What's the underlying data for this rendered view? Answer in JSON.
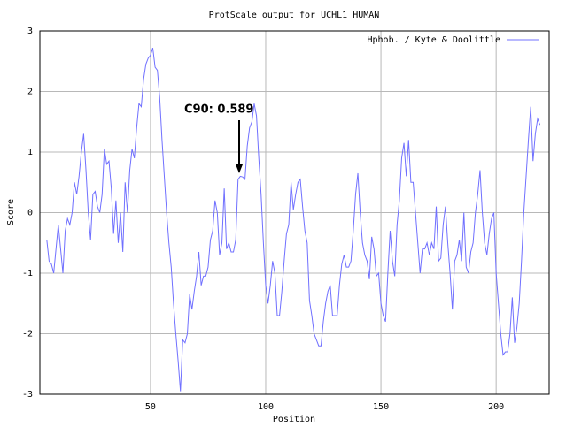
{
  "chart_data": {
    "type": "line",
    "title": "ProtScale output for UCHL1 HUMAN",
    "x_label": "Position",
    "y_label": "Score",
    "annotation": "C90: 0.589",
    "legend_position": "upper right",
    "grid": true,
    "xlim": [
      2,
      223
    ],
    "xticks": [
      50,
      100,
      150,
      200
    ],
    "ylim": [
      -3,
      3
    ],
    "yticks": [
      -3,
      -2,
      -1,
      0,
      1,
      2,
      3
    ],
    "x": [
      5,
      6,
      7,
      8,
      9,
      10,
      11,
      12,
      13,
      14,
      15,
      16,
      17,
      18,
      19,
      20,
      21,
      22,
      23,
      24,
      25,
      26,
      27,
      28,
      29,
      30,
      31,
      32,
      33,
      34,
      35,
      36,
      37,
      38,
      39,
      40,
      41,
      42,
      43,
      44,
      45,
      46,
      47,
      48,
      49,
      50,
      51,
      52,
      53,
      54,
      55,
      56,
      57,
      58,
      59,
      60,
      61,
      62,
      63,
      64,
      65,
      66,
      67,
      68,
      69,
      70,
      71,
      72,
      73,
      74,
      75,
      76,
      77,
      78,
      79,
      80,
      81,
      82,
      83,
      84,
      85,
      86,
      87,
      88,
      89,
      90,
      91,
      92,
      93,
      94,
      95,
      96,
      97,
      98,
      99,
      100,
      101,
      102,
      103,
      104,
      105,
      106,
      107,
      108,
      109,
      110,
      111,
      112,
      113,
      114,
      115,
      116,
      117,
      118,
      119,
      120,
      121,
      122,
      123,
      124,
      125,
      126,
      127,
      128,
      129,
      130,
      131,
      132,
      133,
      134,
      135,
      136,
      137,
      138,
      139,
      140,
      141,
      142,
      143,
      144,
      145,
      146,
      147,
      148,
      149,
      150,
      151,
      152,
      153,
      154,
      155,
      156,
      157,
      158,
      159,
      160,
      161,
      162,
      163,
      164,
      165,
      166,
      167,
      168,
      169,
      170,
      171,
      172,
      173,
      174,
      175,
      176,
      177,
      178,
      179,
      180,
      181,
      182,
      183,
      184,
      185,
      186,
      187,
      188,
      189,
      190,
      191,
      192,
      193,
      194,
      195,
      196,
      197,
      198,
      199,
      200,
      201,
      202,
      203,
      204,
      205,
      206,
      207,
      208,
      209,
      210,
      211,
      212,
      213,
      214,
      215,
      216,
      217,
      218,
      219
    ],
    "series": [
      {
        "name": "Hphob. / Kyte & Doolittle",
        "color": "#7070ff",
        "values": [
          -0.45,
          -0.8,
          -0.85,
          -1.0,
          -0.6,
          -0.2,
          -0.6,
          -1.0,
          -0.3,
          -0.1,
          -0.2,
          0.0,
          0.5,
          0.3,
          0.6,
          1.0,
          1.3,
          0.7,
          0.0,
          -0.45,
          0.3,
          0.35,
          0.1,
          0.0,
          0.3,
          1.05,
          0.8,
          0.85,
          0.4,
          -0.35,
          0.2,
          -0.5,
          0.0,
          -0.65,
          0.5,
          0.0,
          0.7,
          1.05,
          0.9,
          1.4,
          1.8,
          1.75,
          2.2,
          2.45,
          2.55,
          2.6,
          2.72,
          2.4,
          2.35,
          1.9,
          1.2,
          0.6,
          0.0,
          -0.5,
          -0.9,
          -1.5,
          -2.0,
          -2.45,
          -2.95,
          -2.1,
          -2.15,
          -2.0,
          -1.35,
          -1.6,
          -1.3,
          -1.05,
          -0.65,
          -1.2,
          -1.05,
          -1.05,
          -0.9,
          -0.45,
          -0.3,
          0.2,
          0.0,
          -0.7,
          -0.5,
          0.4,
          -0.6,
          -0.5,
          -0.65,
          -0.65,
          -0.45,
          0.55,
          0.6,
          0.589,
          0.55,
          1.1,
          1.4,
          1.5,
          1.8,
          1.6,
          0.9,
          0.3,
          -0.5,
          -1.2,
          -1.5,
          -1.2,
          -0.8,
          -1.0,
          -1.7,
          -1.7,
          -1.3,
          -0.8,
          -0.35,
          -0.2,
          0.5,
          0.05,
          0.3,
          0.5,
          0.55,
          0.1,
          -0.3,
          -0.5,
          -1.45,
          -1.7,
          -2.0,
          -2.1,
          -2.2,
          -2.2,
          -1.8,
          -1.5,
          -1.3,
          -1.2,
          -1.7,
          -1.7,
          -1.7,
          -1.2,
          -0.85,
          -0.7,
          -0.9,
          -0.9,
          -0.8,
          -0.3,
          0.3,
          0.65,
          0.0,
          -0.5,
          -0.7,
          -0.8,
          -1.1,
          -0.4,
          -0.6,
          -1.05,
          -1.0,
          -1.5,
          -1.7,
          -1.8,
          -1.0,
          -0.3,
          -0.8,
          -1.05,
          -0.2,
          0.2,
          0.9,
          1.15,
          0.6,
          1.2,
          0.5,
          0.5,
          0.0,
          -0.5,
          -1.0,
          -0.6,
          -0.6,
          -0.5,
          -0.7,
          -0.5,
          -0.6,
          0.1,
          -0.8,
          -0.75,
          -0.2,
          0.1,
          -0.5,
          -1.0,
          -1.6,
          -0.8,
          -0.7,
          -0.45,
          -0.8,
          0.0,
          -0.9,
          -1.0,
          -0.65,
          -0.5,
          0.0,
          0.3,
          0.7,
          0.0,
          -0.5,
          -0.7,
          -0.35,
          -0.1,
          0.0,
          -1.0,
          -1.5,
          -2.0,
          -2.35,
          -2.3,
          -2.3,
          -2.0,
          -1.4,
          -2.15,
          -1.9,
          -1.5,
          -0.8,
          0.0,
          0.6,
          1.2,
          1.75,
          0.85,
          1.3,
          1.55,
          1.45
        ]
      }
    ]
  }
}
